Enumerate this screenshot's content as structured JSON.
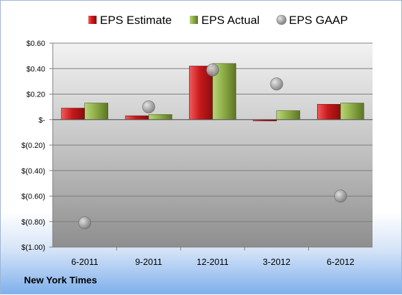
{
  "company_name": "New York Times",
  "colors": {
    "estimate": "#c8191b",
    "actual": "#7f9c3b",
    "gaap": "#9b9b9b"
  },
  "chart_data": {
    "type": "bar",
    "categories": [
      "6-2011",
      "9-2011",
      "12-2011",
      "3-2012",
      "6-2012"
    ],
    "series": [
      {
        "name": "EPS Estimate",
        "kind": "bar",
        "values": [
          0.09,
          0.03,
          0.42,
          -0.01,
          0.12
        ]
      },
      {
        "name": "EPS Actual",
        "kind": "bar",
        "values": [
          0.13,
          0.04,
          0.44,
          0.07,
          0.13
        ]
      },
      {
        "name": "EPS GAAP",
        "kind": "marker",
        "values": [
          -0.81,
          0.1,
          0.39,
          0.28,
          -0.6
        ]
      }
    ],
    "ylim": [
      -1.0,
      0.6
    ],
    "yticks": [
      0.6,
      0.4,
      0.2,
      0,
      -0.2,
      -0.4,
      -0.6,
      -0.8,
      -1.0
    ],
    "ytick_labels": [
      "$0.60",
      "$0.40",
      "$0.20",
      "$-",
      "$(0.20)",
      "$(0.40)",
      "$(0.60)",
      "$(0.80)",
      "$(1.00)"
    ],
    "grid": true,
    "legend": "top"
  }
}
